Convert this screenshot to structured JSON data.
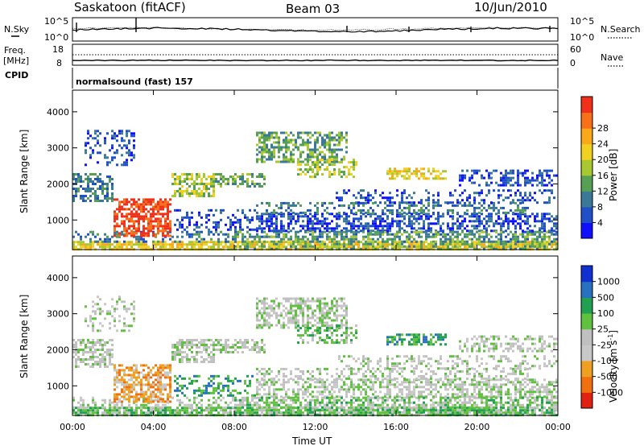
{
  "header": {
    "station": "Saskatoon (fitACF)",
    "beam": "Beam 03",
    "date": "10/Jun/2010"
  },
  "noise_panel": {
    "left_label": "N.Sky",
    "right_label": "N.Search",
    "left_ticks": [
      "10^5",
      "10^0"
    ],
    "right_ticks": [
      "10^5",
      "10^0"
    ]
  },
  "freq_panel": {
    "left_label_1": "Freq.",
    "left_label_2": "[MHz]",
    "right_label": "Nave",
    "left_ticks": [
      "18",
      "8"
    ],
    "right_ticks": [
      "60",
      "0"
    ]
  },
  "cpid_panel": {
    "label": "CPID",
    "mode": "normalsound (fast) 157"
  },
  "chart_data": [
    {
      "type": "heatmap",
      "quantity": "Power",
      "ylabel": "Slant Range [km]",
      "ylim": [
        180,
        4600
      ],
      "yticks": [
        "1000",
        "2000",
        "3000",
        "4000"
      ],
      "colorbar_label": "Power [dB]",
      "colorbar_ticks": [
        "4",
        "8",
        "12",
        "16",
        "20",
        "24",
        "28"
      ],
      "colorbar_colors": [
        "#1010ff",
        "#2050c8",
        "#3a7a98",
        "#55a055",
        "#a8c832",
        "#f0d020",
        "#f8a818",
        "#f87018",
        "#f03018"
      ]
    },
    {
      "type": "heatmap",
      "quantity": "Velocity",
      "ylabel": "Slant Range [km]",
      "ylim": [
        180,
        4600
      ],
      "yticks": [
        "1000",
        "2000",
        "3000",
        "4000"
      ],
      "xlabel": "Time UT",
      "xticks": [
        "00:00",
        "04:00",
        "08:00",
        "12:00",
        "16:00",
        "20:00",
        "00:00"
      ],
      "colorbar_label": "Velocity [m s",
      "colorbar_label_sup": "-1",
      "colorbar_label_end": "]",
      "colorbar_ticks": [
        "1000",
        "500",
        "100",
        "25",
        "-25",
        "-100",
        "-500",
        "-1000"
      ],
      "colorbar_colors": [
        "#1030d0",
        "#2870c0",
        "#20a050",
        "#60c040",
        "#c0c0c0",
        "#c8c8c8",
        "#f0a020",
        "#f07010",
        "#e02010"
      ]
    }
  ]
}
